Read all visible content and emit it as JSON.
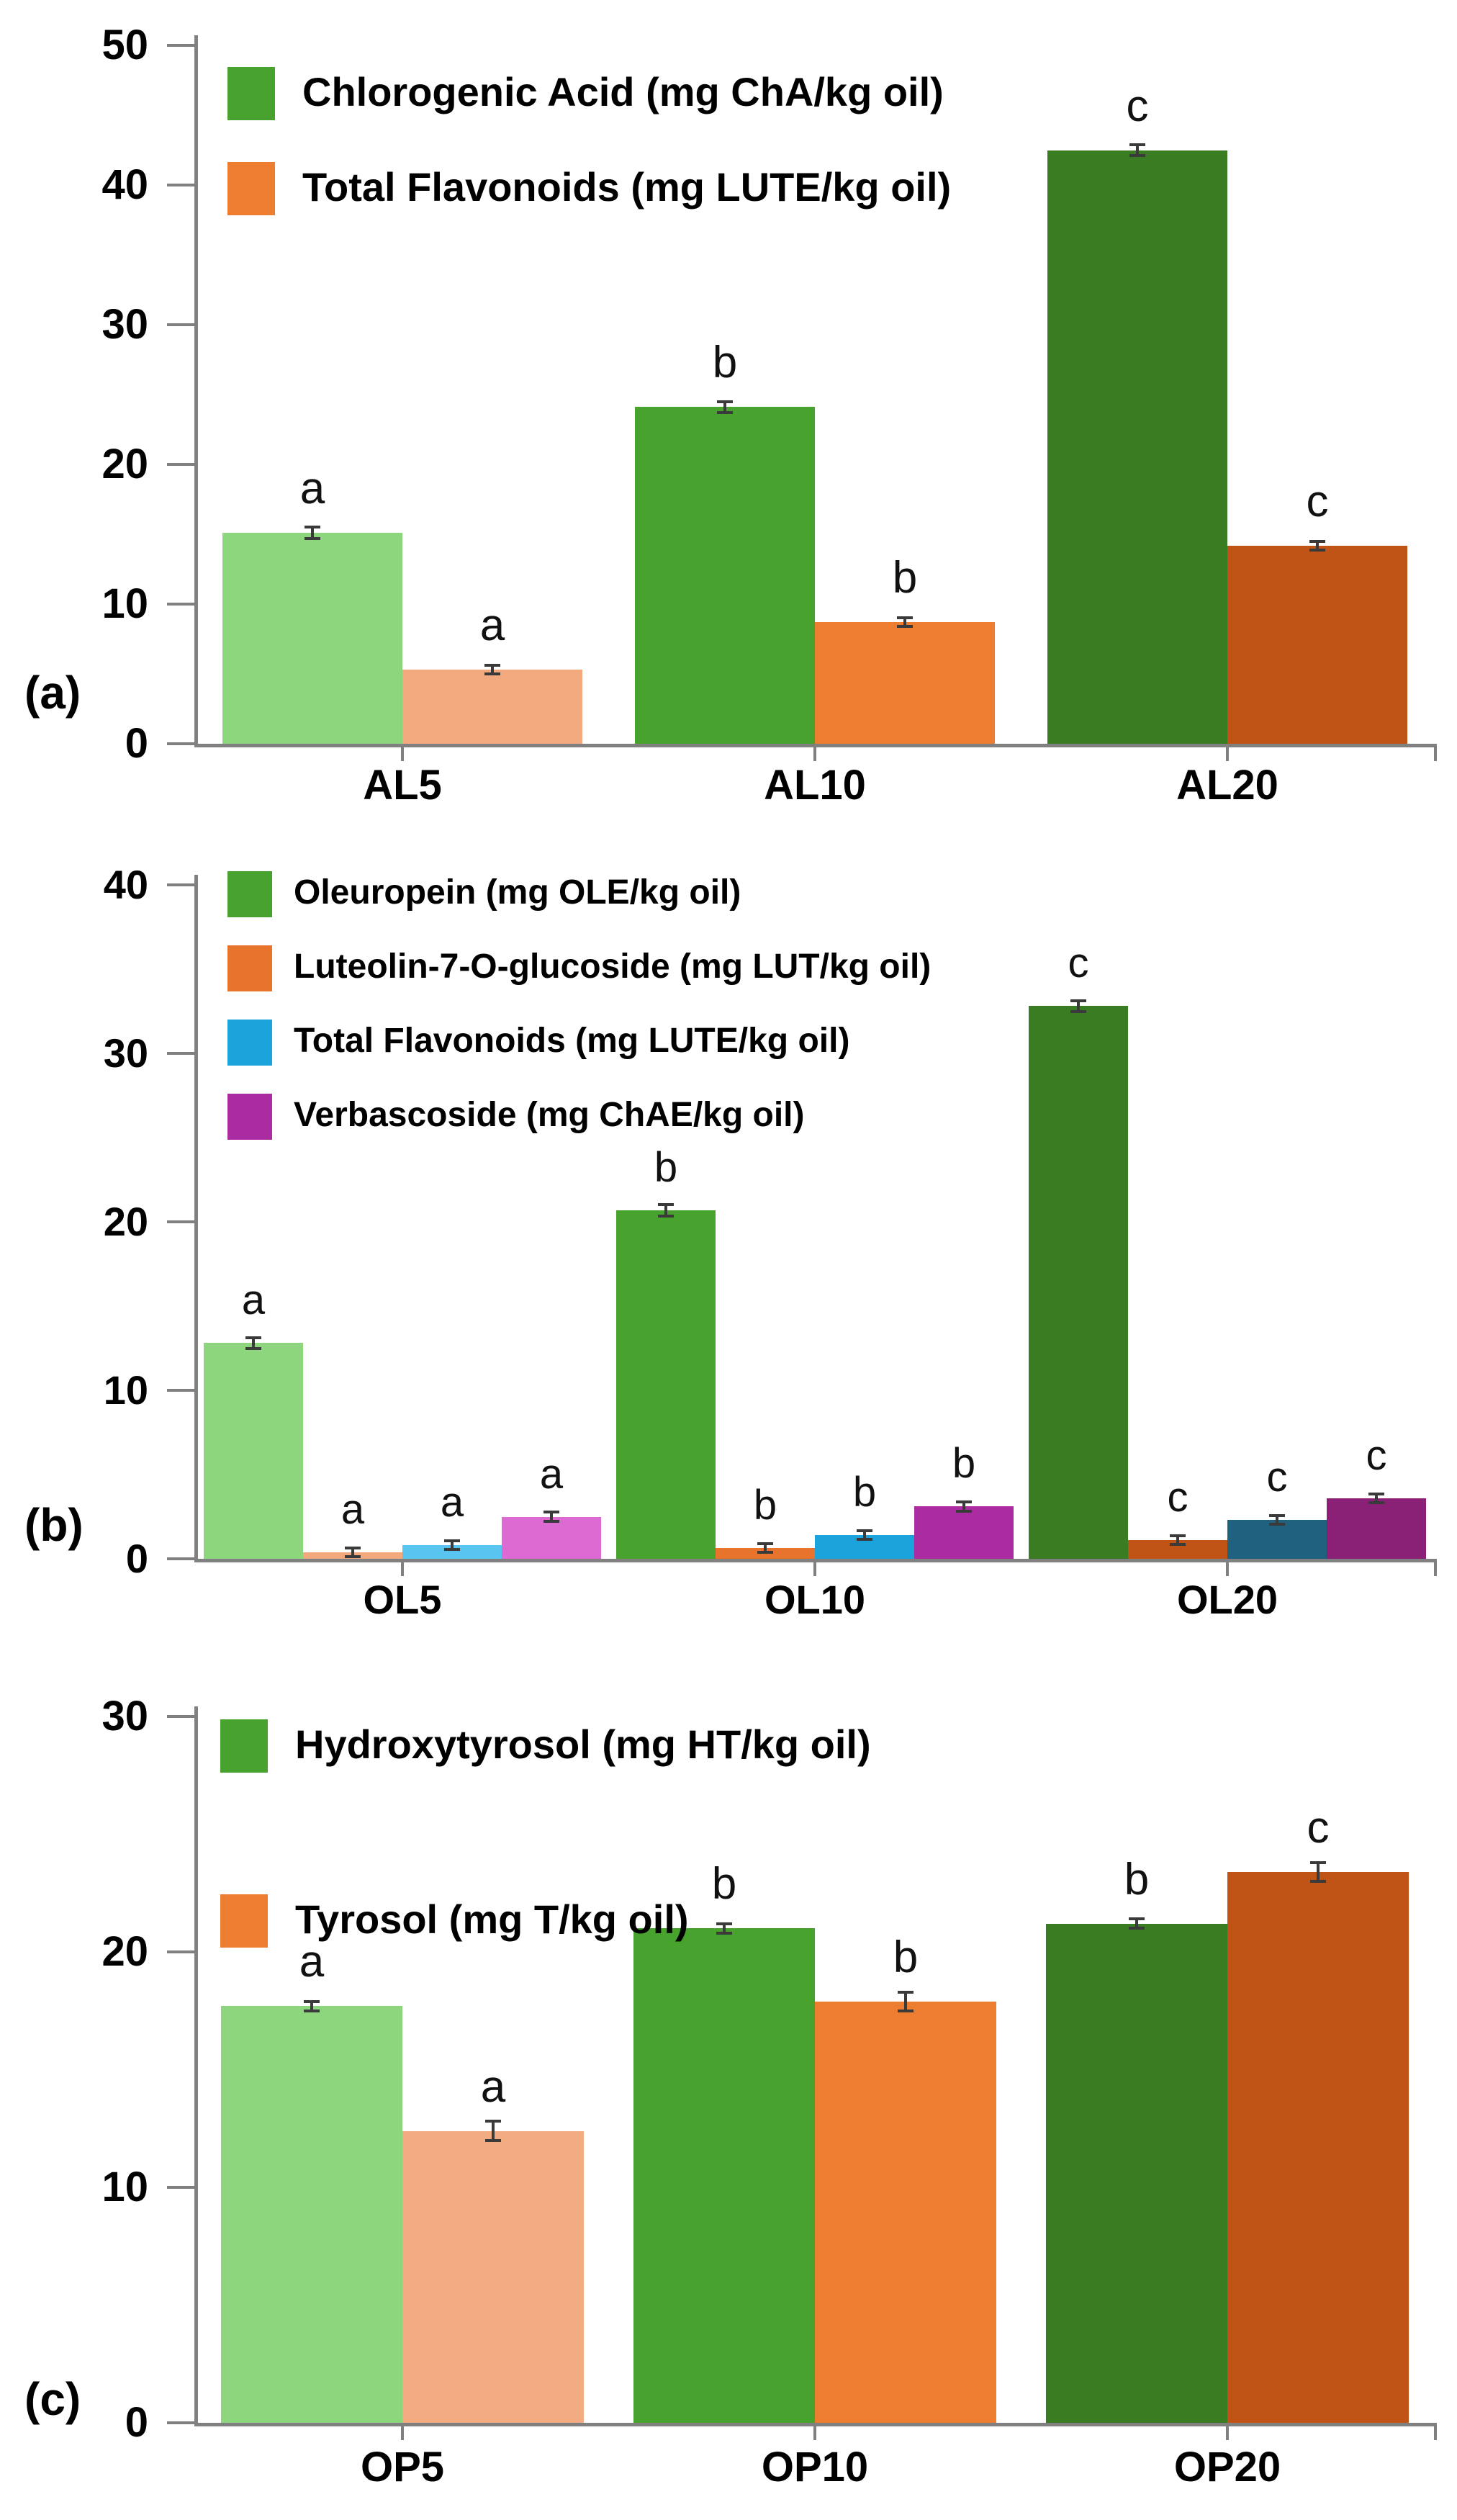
{
  "figure_title": "",
  "chart_data": [
    {
      "type": "bar",
      "panel_label": "(a)",
      "categories": [
        "AL5",
        "AL10",
        "AL20"
      ],
      "ylim": [
        0,
        50
      ],
      "yticks": [
        0,
        10,
        20,
        30,
        40,
        50
      ],
      "grid": "off",
      "legend_position": "top-left-inside",
      "series": [
        {
          "name": "Chlorogenic Acid (mg ChA/kg oil)",
          "legend_color": "#47a32e",
          "colors": [
            "#8ed67d",
            "#47a32e",
            "#3a7c21"
          ],
          "values": [
            15.1,
            24.1,
            42.5
          ],
          "err": 0.4
        },
        {
          "name": "Total Flavonoids (mg LUTE/kg oil)",
          "legend_color": "#ec7d31",
          "colors": [
            "#f3a97e",
            "#ec7d31",
            "#c05316"
          ],
          "values": [
            5.3,
            8.7,
            14.2
          ],
          "err": 0.3
        }
      ],
      "sig_letters": [
        [
          "a",
          "a"
        ],
        [
          "b",
          "b"
        ],
        [
          "c",
          "c"
        ]
      ]
    },
    {
      "type": "bar",
      "panel_label": "(b)",
      "categories": [
        "OL5",
        "OL10",
        "OL20"
      ],
      "ylim": [
        0,
        40
      ],
      "yticks": [
        0,
        10,
        20,
        30,
        40
      ],
      "grid": "off",
      "legend_position": "top-left-inside",
      "series": [
        {
          "name": "Oleuropein (mg OLE/kg oil)",
          "legend_color": "#47a32e",
          "colors": [
            "#8ed67d",
            "#47a32e",
            "#3a7c21"
          ],
          "values": [
            12.8,
            20.7,
            32.8
          ],
          "err": 0.34
        },
        {
          "name": "Luteolin-7-O-glucoside (mg LUT/kg oil)",
          "legend_color": "#e8732c",
          "colors": [
            "#f3a97e",
            "#e8732c",
            "#c05316"
          ],
          "values": [
            0.4,
            0.65,
            1.1
          ],
          "err": 0.2
        },
        {
          "name": "Total Flavonoids (mg LUTE/kg oil)",
          "legend_color": "#1ba4dc",
          "colors": [
            "#57c5f0",
            "#1ba4dc",
            "#20617f"
          ],
          "values": [
            0.8,
            1.4,
            2.3
          ],
          "err": 0.2
        },
        {
          "name": "Verbascoside (mg ChAE/kg oil)",
          "legend_color": "#ab2ba1",
          "colors": [
            "#dd6ad2",
            "#ab2ba1",
            "#8b2077"
          ],
          "values": [
            2.5,
            3.1,
            3.6
          ],
          "err": 0.26
        }
      ],
      "sig_letters": [
        [
          "a",
          "a",
          "a",
          "a"
        ],
        [
          "b",
          "b",
          "b",
          "b"
        ],
        [
          "c",
          "c",
          "c",
          "c"
        ]
      ]
    },
    {
      "type": "bar",
      "panel_label": "(c)",
      "categories": [
        "OP5",
        "OP10",
        "OP20"
      ],
      "ylim": [
        0,
        30
      ],
      "yticks": [
        0,
        10,
        20,
        30
      ],
      "grid": "off",
      "legend_position": "top-left-inside",
      "series": [
        {
          "name": "Hydroxytyrosol (mg HT/kg oil)",
          "legend_color": "#47a32e",
          "colors": [
            "#8ed67d",
            "#47a32e",
            "#3a7c21"
          ],
          "values": [
            17.7,
            21.0,
            21.2
          ],
          "err": 0.2
        },
        {
          "name": "Tyrosol (mg T/kg oil)",
          "legend_color": "#ec7d31",
          "colors": [
            "#f3ab81",
            "#ec7d31",
            "#c05316"
          ],
          "values": [
            12.4,
            17.9,
            23.4
          ],
          "err": 0.4
        }
      ],
      "sig_letters": [
        [
          "a",
          "a"
        ],
        [
          "b",
          "b"
        ],
        [
          "b",
          "c"
        ]
      ]
    }
  ]
}
